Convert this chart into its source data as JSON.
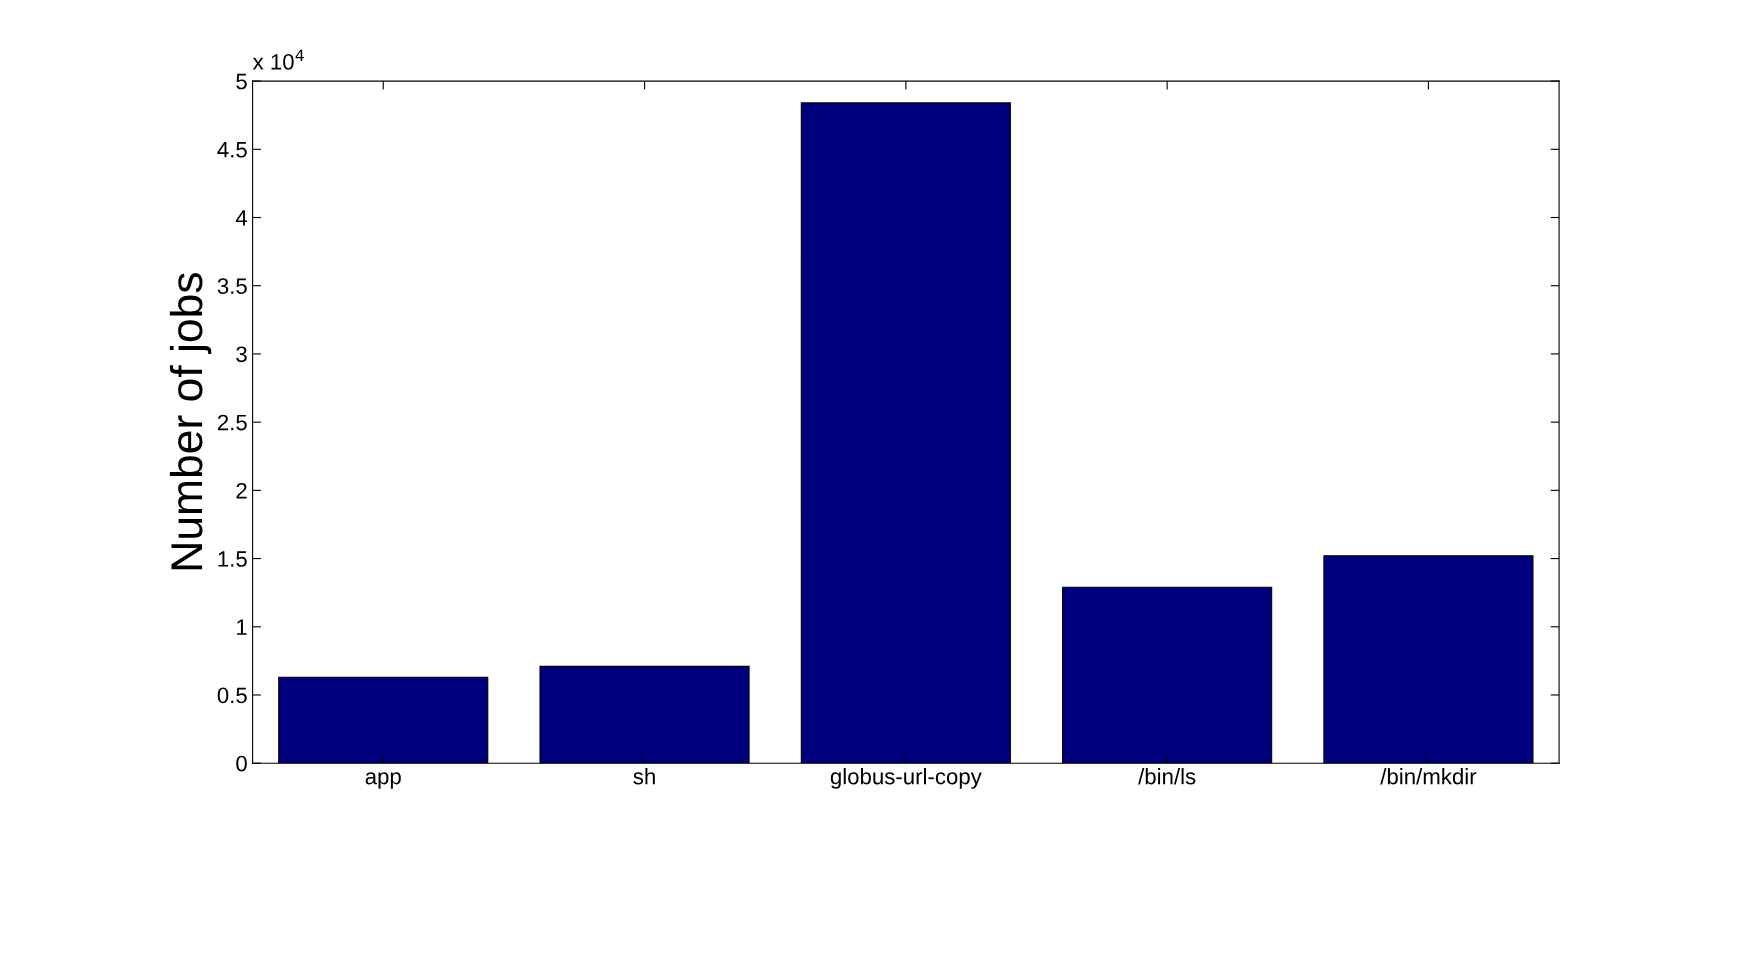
{
  "chart_data": {
    "type": "bar",
    "ylabel": "Number of jobs",
    "categories": [
      "app",
      "sh",
      "globus-url-copy",
      "/bin/ls",
      "/bin/mkdir"
    ],
    "values": [
      0.63,
      0.71,
      4.84,
      1.29,
      1.52
    ],
    "color": "#00007f",
    "ylim": [
      0,
      5
    ],
    "yticks": [
      0,
      0.5,
      1,
      1.5,
      2,
      2.5,
      3,
      3.5,
      4,
      4.5,
      5
    ],
    "annotations": [
      "x 10$^{4}$"
    ],
    "grid": false
  }
}
